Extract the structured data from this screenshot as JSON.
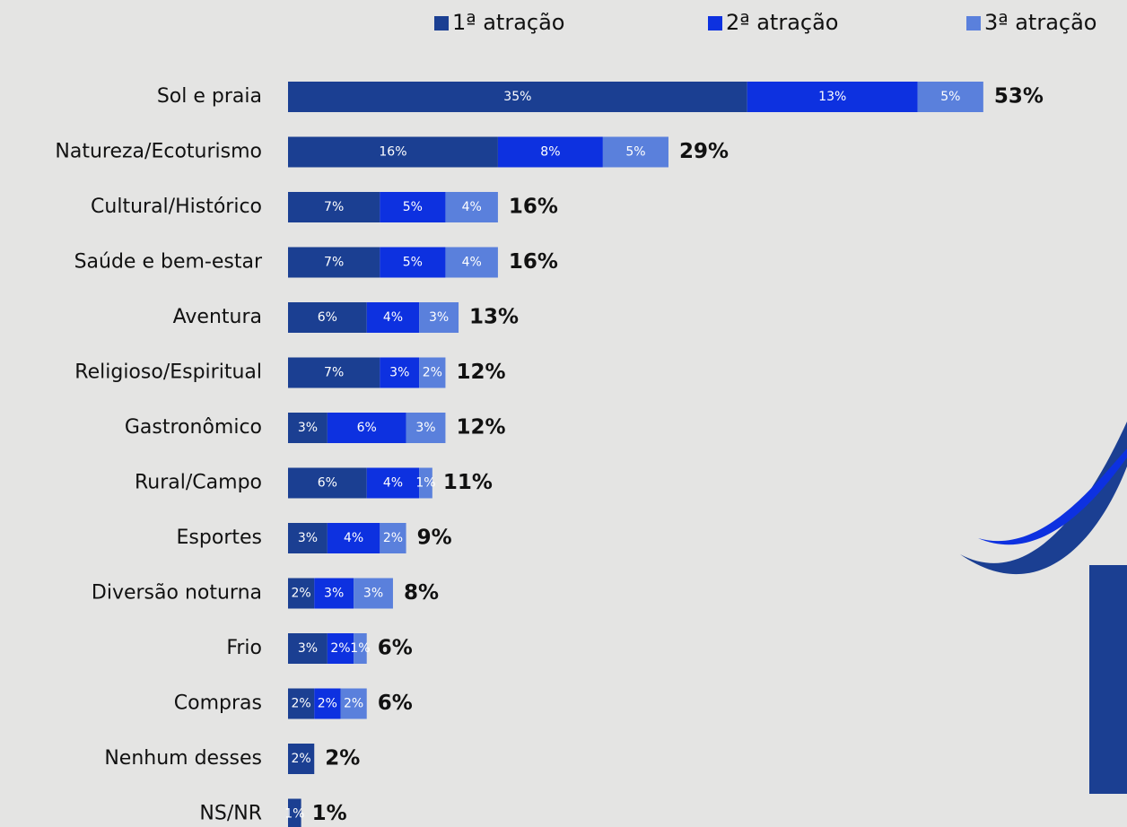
{
  "chart_data": {
    "type": "stacked-bar-horizontal",
    "categories": [
      "Sol e praia",
      "Natureza/Ecoturismo",
      "Cultural/Histórico",
      "Saúde e bem-estar",
      "Aventura",
      "Religioso/Espiritual",
      "Gastronômico",
      "Rural/Campo",
      "Esportes",
      "Diversão noturna",
      "Frio",
      "Compras",
      "Nenhum desses",
      "NS/NR"
    ],
    "series": [
      {
        "name": "1ª atração",
        "color": "#1b3f92",
        "values": [
          35,
          16,
          7,
          7,
          6,
          7,
          3,
          6,
          3,
          2,
          3,
          2,
          2,
          1
        ],
        "value_labels": [
          "35%",
          "16%",
          "7%",
          "7%",
          "6%",
          "7%",
          "3%",
          "6%",
          "3%",
          "2%",
          "3%",
          "2%",
          "2%",
          "1%"
        ]
      },
      {
        "name": "2ª atração",
        "color": "#0d31e0",
        "values": [
          13,
          8,
          5,
          5,
          4,
          3,
          6,
          4,
          4,
          3,
          2,
          2,
          null,
          null
        ],
        "value_labels": [
          "13%",
          "8%",
          "5%",
          "5%",
          "4%",
          "3%",
          "6%",
          "4%",
          "4%",
          "3%",
          "2%",
          "2%",
          null,
          null
        ]
      },
      {
        "name": "3ª atração",
        "color": "#5a80dc",
        "values": [
          5,
          5,
          4,
          4,
          3,
          2,
          3,
          1,
          2,
          3,
          1,
          2,
          null,
          null
        ],
        "value_labels": [
          "5%",
          "5%",
          "4%",
          "4%",
          "3%",
          "2%",
          "3%",
          "1%",
          "2%",
          "3%",
          "1%",
          "2%",
          null,
          null
        ]
      }
    ],
    "totals": [
      53,
      29,
      16,
      16,
      13,
      12,
      12,
      11,
      9,
      8,
      6,
      6,
      2,
      1
    ],
    "total_labels": [
      "53%",
      "29%",
      "16%",
      "16%",
      "13%",
      "12%",
      "12%",
      "11%",
      "9%",
      "8%",
      "6%",
      "6%",
      "2%",
      "1%"
    ]
  }
}
